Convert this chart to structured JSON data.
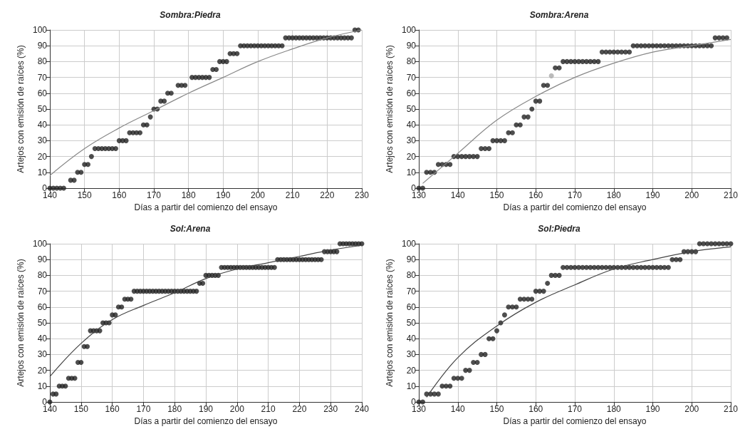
{
  "chart_data": [
    {
      "type": "scatter",
      "title": "Sombra:Piedra",
      "xlabel": "Días a partir del comienzo del ensayo",
      "ylabel": "Artejos con emisión de raíces (%)",
      "xlim": [
        140,
        230
      ],
      "xticks": [
        140,
        150,
        160,
        170,
        180,
        190,
        200,
        210,
        220,
        230
      ],
      "ylim": [
        0,
        100
      ],
      "yticks": [
        0,
        10,
        20,
        30,
        40,
        50,
        60,
        70,
        80,
        90,
        100
      ],
      "grid": true,
      "marker": "circle",
      "series": [
        {
          "color": "#222222",
          "x": [
            140,
            141,
            142,
            143,
            144,
            146,
            147,
            148,
            149,
            150,
            151,
            152,
            153,
            154,
            155,
            156,
            157,
            158,
            159,
            160,
            161,
            162,
            163,
            164,
            165,
            166,
            167,
            168,
            169,
            170,
            171,
            172,
            173,
            174,
            175,
            177,
            178,
            179,
            181,
            182,
            183,
            184,
            185,
            186,
            187,
            188,
            189,
            190,
            191,
            192,
            193,
            194,
            195,
            196,
            197,
            198,
            199,
            200,
            201,
            202,
            203,
            204,
            205,
            206,
            207,
            208,
            209,
            210,
            211,
            212,
            213,
            214,
            215,
            216,
            217,
            218,
            219,
            220,
            221,
            222,
            223,
            224,
            225,
            226,
            227,
            228,
            229
          ],
          "values": [
            0,
            0,
            0,
            0,
            0,
            5,
            5,
            10,
            10,
            15,
            15,
            20,
            25,
            25,
            25,
            25,
            25,
            25,
            25,
            30,
            30,
            30,
            35,
            35,
            35,
            35,
            40,
            40,
            45,
            50,
            50,
            55,
            55,
            60,
            60,
            65,
            65,
            65,
            70,
            70,
            70,
            70,
            70,
            70,
            75,
            75,
            80,
            80,
            80,
            85,
            85,
            85,
            90,
            90,
            90,
            90,
            90,
            90,
            90,
            90,
            90,
            90,
            90,
            90,
            90,
            95,
            95,
            95,
            95,
            95,
            95,
            95,
            95,
            95,
            95,
            95,
            95,
            95,
            95,
            95,
            95,
            95,
            95,
            95,
            95,
            100,
            100
          ]
        },
        {
          "type": "line",
          "marker": "none",
          "color": "#888888",
          "x": [
            140,
            150,
            160,
            170,
            180,
            190,
            200,
            210,
            220,
            230
          ],
          "values": [
            8,
            25,
            38,
            49,
            60,
            70,
            80,
            88,
            95,
            100
          ]
        }
      ]
    },
    {
      "type": "scatter",
      "title": "Sombra:Arena",
      "xlabel": "Días a partir del comienzo del ensayo",
      "ylabel": "Artejos con emisión de raíces (%)",
      "xlim": [
        130,
        210
      ],
      "xticks": [
        130,
        140,
        150,
        160,
        170,
        180,
        190,
        200,
        210
      ],
      "ylim": [
        0,
        100
      ],
      "yticks": [
        0,
        10,
        20,
        30,
        40,
        50,
        60,
        70,
        80,
        90,
        100
      ],
      "grid": true,
      "marker": "circle",
      "series": [
        {
          "color": "#222222",
          "x": [
            130,
            131,
            132,
            133,
            134,
            135,
            136,
            137,
            138,
            139,
            140,
            141,
            142,
            143,
            144,
            145,
            146,
            147,
            148,
            149,
            150,
            151,
            152,
            153,
            154,
            155,
            156,
            157,
            158,
            159,
            160,
            161,
            162,
            163,
            165,
            166,
            167,
            168,
            169,
            170,
            171,
            172,
            173,
            174,
            175,
            176,
            177,
            178,
            179,
            180,
            181,
            182,
            183,
            184,
            185,
            186,
            187,
            188,
            189,
            190,
            191,
            192,
            193,
            194,
            195,
            196,
            197,
            198,
            199,
            200,
            201,
            202,
            203,
            204,
            205,
            206,
            207,
            208,
            209
          ],
          "values": [
            0,
            0,
            10,
            10,
            10,
            15,
            15,
            15,
            15,
            20,
            20,
            20,
            20,
            20,
            20,
            20,
            25,
            25,
            25,
            30,
            30,
            30,
            30,
            35,
            35,
            40,
            40,
            45,
            45,
            50,
            55,
            55,
            65,
            65,
            76,
            76,
            80,
            80,
            80,
            80,
            80,
            80,
            80,
            80,
            80,
            80,
            86,
            86,
            86,
            86,
            86,
            86,
            86,
            86,
            90,
            90,
            90,
            90,
            90,
            90,
            90,
            90,
            90,
            90,
            90,
            90,
            90,
            90,
            90,
            90,
            90,
            90,
            90,
            90,
            90,
            95,
            95,
            95,
            95
          ]
        },
        {
          "color": "#aaaaaa",
          "x": [
            164
          ],
          "values": [
            71
          ]
        },
        {
          "type": "line",
          "marker": "none",
          "color": "#888888",
          "x": [
            131,
            140,
            150,
            160,
            170,
            180,
            190,
            200,
            210
          ],
          "values": [
            3,
            22,
            43,
            58,
            70,
            79,
            86,
            90,
            94
          ]
        }
      ]
    },
    {
      "type": "scatter",
      "title": "Sol:Arena",
      "xlabel": "Días a partir del comienzo del ensayo",
      "ylabel": "Artejos con emisión de raíces (%)",
      "xlim": [
        140,
        240
      ],
      "xticks": [
        140,
        150,
        160,
        170,
        180,
        190,
        200,
        210,
        220,
        230,
        240
      ],
      "ylim": [
        0,
        100
      ],
      "yticks": [
        0,
        10,
        20,
        30,
        40,
        50,
        60,
        70,
        80,
        90,
        100
      ],
      "grid": true,
      "marker": "circle",
      "series": [
        {
          "color": "#222222",
          "x": [
            140,
            141,
            142,
            143,
            144,
            145,
            146,
            147,
            148,
            149,
            150,
            151,
            152,
            153,
            154,
            155,
            156,
            157,
            158,
            159,
            160,
            161,
            162,
            163,
            164,
            165,
            166,
            167,
            168,
            169,
            170,
            171,
            172,
            173,
            174,
            175,
            176,
            177,
            178,
            179,
            180,
            181,
            182,
            183,
            184,
            185,
            186,
            187,
            188,
            189,
            190,
            191,
            192,
            193,
            194,
            195,
            196,
            197,
            198,
            199,
            200,
            201,
            202,
            203,
            204,
            205,
            206,
            207,
            208,
            209,
            210,
            211,
            212,
            213,
            214,
            215,
            216,
            217,
            218,
            219,
            220,
            221,
            222,
            223,
            224,
            225,
            226,
            227,
            228,
            229,
            230,
            231,
            232,
            233,
            234,
            235,
            236,
            237,
            238,
            239,
            240
          ],
          "values": [
            0,
            5,
            5,
            10,
            10,
            10,
            15,
            15,
            15,
            25,
            25,
            35,
            35,
            45,
            45,
            45,
            45,
            50,
            50,
            50,
            55,
            55,
            60,
            60,
            65,
            65,
            65,
            70,
            70,
            70,
            70,
            70,
            70,
            70,
            70,
            70,
            70,
            70,
            70,
            70,
            70,
            70,
            70,
            70,
            70,
            70,
            70,
            70,
            75,
            75,
            80,
            80,
            80,
            80,
            80,
            85,
            85,
            85,
            85,
            85,
            85,
            85,
            85,
            85,
            85,
            85,
            85,
            85,
            85,
            85,
            85,
            85,
            85,
            90,
            90,
            90,
            90,
            90,
            90,
            90,
            90,
            90,
            90,
            90,
            90,
            90,
            90,
            90,
            95,
            95,
            95,
            95,
            95,
            100,
            100,
            100,
            100,
            100,
            100,
            100,
            100
          ]
        },
        {
          "type": "line",
          "marker": "none",
          "color": "#444444",
          "x": [
            140,
            150,
            160,
            170,
            180,
            190,
            200,
            210,
            220,
            230,
            240
          ],
          "values": [
            16,
            37,
            52,
            61,
            69,
            78,
            84,
            88,
            92,
            96,
            99
          ]
        }
      ]
    },
    {
      "type": "scatter",
      "title": "Sol:Piedra",
      "xlabel": "Días a partir del comienzo del ensayo",
      "ylabel": "Artejos con emisión de raíces (%)",
      "xlim": [
        130,
        210
      ],
      "xticks": [
        130,
        140,
        150,
        160,
        170,
        180,
        190,
        200,
        210
      ],
      "ylim": [
        0,
        100
      ],
      "yticks": [
        0,
        10,
        20,
        30,
        40,
        50,
        60,
        70,
        80,
        90,
        100
      ],
      "grid": true,
      "marker": "circle",
      "series": [
        {
          "color": "#222222",
          "x": [
            130,
            131,
            132,
            133,
            134,
            135,
            136,
            137,
            138,
            139,
            140,
            141,
            142,
            143,
            144,
            145,
            146,
            147,
            148,
            149,
            150,
            151,
            152,
            153,
            154,
            155,
            156,
            157,
            158,
            159,
            160,
            161,
            162,
            163,
            164,
            165,
            166,
            167,
            168,
            169,
            170,
            171,
            172,
            173,
            174,
            175,
            176,
            177,
            178,
            179,
            180,
            181,
            182,
            183,
            184,
            185,
            186,
            187,
            188,
            189,
            190,
            191,
            192,
            193,
            194,
            195,
            196,
            197,
            198,
            199,
            200,
            201,
            202,
            203,
            204,
            205,
            206,
            207,
            208,
            209,
            210
          ],
          "values": [
            0,
            0,
            5,
            5,
            5,
            5,
            10,
            10,
            10,
            15,
            15,
            15,
            20,
            20,
            25,
            25,
            30,
            30,
            40,
            40,
            45,
            50,
            55,
            60,
            60,
            60,
            65,
            65,
            65,
            65,
            70,
            70,
            70,
            75,
            80,
            80,
            80,
            85,
            85,
            85,
            85,
            85,
            85,
            85,
            85,
            85,
            85,
            85,
            85,
            85,
            85,
            85,
            85,
            85,
            85,
            85,
            85,
            85,
            85,
            85,
            85,
            85,
            85,
            85,
            85,
            90,
            90,
            90,
            95,
            95,
            95,
            95,
            100,
            100,
            100,
            100,
            100,
            100,
            100,
            100,
            100
          ]
        },
        {
          "type": "line",
          "marker": "none",
          "color": "#444444",
          "x": [
            132,
            140,
            150,
            160,
            170,
            180,
            190,
            200,
            210
          ],
          "values": [
            3,
            28,
            48,
            63,
            74,
            84,
            90,
            95,
            98
          ]
        }
      ]
    }
  ]
}
